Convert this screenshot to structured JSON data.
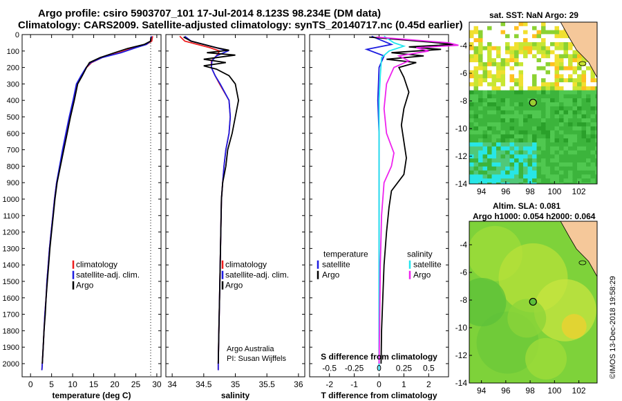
{
  "header": {
    "line1": "Argo profile: csiro 5903707_101 17-Jul-2014 8.123S 98.234E (DM data)",
    "line2": "Climatology: CARS2009. Satellite-adjusted climatology: synTS_20140717.nc (0.45d earlier)"
  },
  "colors": {
    "climatology": "#ee1c1c",
    "satellite": "#1c1ce0",
    "argo": "#000000",
    "sat_salinity": "#22e6ee",
    "argo_salinity": "#ee22ee"
  },
  "yaxis": {
    "ticks": [
      "0",
      "100",
      "200",
      "300",
      "400",
      "500",
      "600",
      "700",
      "800",
      "900",
      "1000",
      "1100",
      "1200",
      "1300",
      "1400",
      "1500",
      "1600",
      "1700",
      "1800",
      "1900",
      "2000"
    ]
  },
  "chart_data": [
    {
      "type": "line",
      "panel": "temperature",
      "xlabel": "temperature (deg C)",
      "xlim": [
        -2,
        31
      ],
      "ylim": [
        2080,
        0
      ],
      "y_axis": "pressure (dbar)",
      "x_ticks": [
        "0",
        "5",
        "10",
        "15",
        "20",
        "25",
        "30"
      ],
      "legend": [
        "climatology",
        "satellite-adj. clim.",
        "Argo"
      ],
      "series": [
        {
          "name": "climatology",
          "color": "#ee1c1c",
          "points": [
            [
              29.0,
              10
            ],
            [
              28.8,
              40
            ],
            [
              27.5,
              60
            ],
            [
              24.5,
              80
            ],
            [
              21.0,
              110
            ],
            [
              17.0,
              140
            ],
            [
              14.5,
              170
            ],
            [
              13.3,
              200
            ],
            [
              12.2,
              250
            ],
            [
              11.0,
              300
            ],
            [
              10.2,
              400
            ],
            [
              9.3,
              500
            ],
            [
              8.5,
              600
            ],
            [
              7.8,
              700
            ],
            [
              7.0,
              800
            ],
            [
              6.2,
              900
            ],
            [
              5.7,
              1000
            ],
            [
              5.3,
              1100
            ],
            [
              4.9,
              1200
            ],
            [
              4.5,
              1300
            ],
            [
              4.2,
              1400
            ],
            [
              3.9,
              1500
            ],
            [
              3.7,
              1600
            ],
            [
              3.4,
              1700
            ],
            [
              3.2,
              1800
            ],
            [
              3.0,
              1900
            ],
            [
              2.8,
              2000
            ],
            [
              2.7,
              2040
            ]
          ]
        },
        {
          "name": "satellite-adj. clim.",
          "color": "#1c1ce0",
          "points": [
            [
              28.7,
              10
            ],
            [
              28.5,
              40
            ],
            [
              27.5,
              60
            ],
            [
              25.0,
              80
            ],
            [
              21.5,
              110
            ],
            [
              17.0,
              140
            ],
            [
              14.3,
              170
            ],
            [
              13.2,
              200
            ],
            [
              12.0,
              250
            ],
            [
              10.9,
              300
            ],
            [
              10.1,
              400
            ],
            [
              9.2,
              500
            ],
            [
              8.4,
              600
            ],
            [
              7.6,
              700
            ],
            [
              6.9,
              800
            ],
            [
              6.2,
              900
            ],
            [
              5.7,
              1000
            ],
            [
              5.3,
              1100
            ],
            [
              4.9,
              1200
            ],
            [
              4.5,
              1300
            ],
            [
              4.2,
              1400
            ],
            [
              3.9,
              1500
            ],
            [
              3.7,
              1600
            ],
            [
              3.4,
              1700
            ],
            [
              3.2,
              1800
            ],
            [
              3.0,
              1900
            ],
            [
              2.8,
              2000
            ],
            [
              2.7,
              2040
            ]
          ]
        },
        {
          "name": "Argo",
          "color": "#000000",
          "points": [
            [
              28.6,
              15
            ],
            [
              28.5,
              40
            ],
            [
              27.0,
              60
            ],
            [
              23.0,
              85
            ],
            [
              20.0,
              110
            ],
            [
              16.5,
              140
            ],
            [
              14.0,
              170
            ],
            [
              13.4,
              195
            ],
            [
              12.3,
              250
            ],
            [
              11.2,
              300
            ],
            [
              10.4,
              400
            ],
            [
              9.5,
              500
            ],
            [
              8.7,
              600
            ],
            [
              7.9,
              700
            ],
            [
              7.1,
              800
            ],
            [
              6.3,
              900
            ],
            [
              5.8,
              1000
            ],
            [
              5.4,
              1100
            ],
            [
              5.0,
              1200
            ],
            [
              4.6,
              1300
            ],
            [
              4.3,
              1400
            ],
            [
              4.0,
              1500
            ],
            [
              3.7,
              1600
            ],
            [
              3.5,
              1700
            ],
            [
              3.2,
              1800
            ],
            [
              3.0,
              1900
            ],
            [
              2.8,
              2000
            ]
          ]
        }
      ]
    },
    {
      "type": "line",
      "panel": "salinity",
      "xlabel": "salinity",
      "xlim": [
        33.9,
        36.1
      ],
      "ylim": [
        2080,
        0
      ],
      "y_axis": "pressure (dbar)",
      "x_ticks": [
        "34",
        "34.5",
        "35",
        "35.5",
        "36"
      ],
      "legend": [
        "climatology",
        "satellite-adj. clim.",
        "Argo"
      ],
      "annotation": [
        "Argo Australia",
        "PI: Susan Wijffels"
      ],
      "series": [
        {
          "name": "climatology",
          "color": "#ee1c1c",
          "points": [
            [
              34.12,
              10
            ],
            [
              34.2,
              40
            ],
            [
              34.4,
              60
            ],
            [
              34.6,
              80
            ],
            [
              34.75,
              100
            ],
            [
              34.7,
              130
            ],
            [
              34.62,
              160
            ],
            [
              34.62,
              200
            ],
            [
              34.68,
              250
            ],
            [
              34.75,
              300
            ],
            [
              34.9,
              400
            ],
            [
              34.92,
              500
            ],
            [
              34.9,
              600
            ],
            [
              34.85,
              700
            ],
            [
              34.82,
              800
            ],
            [
              34.8,
              900
            ],
            [
              34.78,
              1000
            ],
            [
              34.77,
              1200
            ],
            [
              34.76,
              1400
            ],
            [
              34.75,
              1600
            ],
            [
              34.74,
              1800
            ],
            [
              34.73,
              2000
            ],
            [
              34.73,
              2040
            ]
          ]
        },
        {
          "name": "satellite-adj. clim.",
          "color": "#1c1ce0",
          "points": [
            [
              34.2,
              10
            ],
            [
              34.3,
              40
            ],
            [
              34.5,
              60
            ],
            [
              34.7,
              80
            ],
            [
              34.88,
              100
            ],
            [
              34.7,
              130
            ],
            [
              34.63,
              160
            ],
            [
              34.62,
              200
            ],
            [
              34.68,
              250
            ],
            [
              34.76,
              300
            ],
            [
              34.9,
              400
            ],
            [
              34.92,
              500
            ],
            [
              34.9,
              600
            ],
            [
              34.85,
              700
            ],
            [
              34.82,
              800
            ],
            [
              34.8,
              900
            ],
            [
              34.78,
              1000
            ],
            [
              34.77,
              1200
            ],
            [
              34.76,
              1400
            ],
            [
              34.75,
              1600
            ],
            [
              34.74,
              1800
            ],
            [
              34.73,
              2000
            ],
            [
              34.73,
              2040
            ]
          ]
        },
        {
          "name": "Argo",
          "color": "#000000",
          "points": [
            [
              34.18,
              15
            ],
            [
              34.3,
              40
            ],
            [
              34.5,
              60
            ],
            [
              34.7,
              80
            ],
            [
              34.9,
              95
            ],
            [
              34.55,
              110
            ],
            [
              35.0,
              125
            ],
            [
              34.5,
              150
            ],
            [
              34.85,
              170
            ],
            [
              34.5,
              190
            ],
            [
              34.7,
              210
            ],
            [
              34.9,
              250
            ],
            [
              35.0,
              300
            ],
            [
              35.05,
              400
            ],
            [
              35.0,
              500
            ],
            [
              34.95,
              600
            ],
            [
              34.88,
              700
            ],
            [
              34.85,
              800
            ],
            [
              34.8,
              900
            ],
            [
              34.78,
              1000
            ],
            [
              34.77,
              1200
            ],
            [
              34.76,
              1400
            ],
            [
              34.75,
              1600
            ],
            [
              34.74,
              1800
            ],
            [
              34.73,
              2000
            ]
          ]
        }
      ]
    },
    {
      "type": "line",
      "panel": "difference",
      "xlabel": "T difference from climatology",
      "xlabel_top": "S difference from climatology",
      "xlim": [
        -2.8,
        2.8
      ],
      "ylim": [
        2080,
        0
      ],
      "y_axis": "pressure (dbar)",
      "x_ticks": [
        "-2",
        "-1",
        "0",
        "1",
        "2"
      ],
      "x_ticks_top": [
        "-0.5",
        "-0.25",
        "0",
        "0.25",
        "0.5"
      ],
      "legend_left": {
        "title": "temperature",
        "items": [
          "satellite",
          "Argo"
        ]
      },
      "legend_right": {
        "title": "salinity",
        "items": [
          "satellite",
          "Argo"
        ]
      },
      "series": [
        {
          "name": "temperature satellite",
          "color": "#1c1ce0",
          "points": [
            [
              -0.3,
              10
            ],
            [
              0.5,
              60
            ],
            [
              -0.5,
              90
            ],
            [
              0.2,
              130
            ],
            [
              0.0,
              200
            ],
            [
              -0.05,
              400
            ],
            [
              0,
              600
            ],
            [
              0,
              1000
            ],
            [
              0,
              1500
            ],
            [
              0,
              2000
            ],
            [
              0,
              2040
            ]
          ]
        },
        {
          "name": "temperature Argo",
          "color": "#000000",
          "points": [
            [
              -0.4,
              15
            ],
            [
              2.0,
              45
            ],
            [
              3.0,
              60
            ],
            [
              1.2,
              75
            ],
            [
              2.5,
              90
            ],
            [
              0.5,
              110
            ],
            [
              1.8,
              130
            ],
            [
              0.3,
              150
            ],
            [
              1.5,
              170
            ],
            [
              0.8,
              200
            ],
            [
              1.0,
              260
            ],
            [
              1.2,
              350
            ],
            [
              1.0,
              450
            ],
            [
              0.9,
              550
            ],
            [
              1.0,
              650
            ],
            [
              1.1,
              750
            ],
            [
              1.0,
              850
            ],
            [
              0.5,
              950
            ],
            [
              0.4,
              1050
            ],
            [
              0.3,
              1200
            ],
            [
              0.2,
              1400
            ],
            [
              0.15,
              1600
            ],
            [
              0.1,
              1800
            ],
            [
              0.08,
              2000
            ]
          ]
        },
        {
          "name": "salinity satellite",
          "color": "#22e6ee",
          "points": [
            [
              0.2,
              10
            ],
            [
              0.6,
              50
            ],
            [
              1.0,
              70
            ],
            [
              0.4,
              100
            ],
            [
              0.1,
              140
            ],
            [
              0.05,
              250
            ],
            [
              0.0,
              400
            ],
            [
              0,
              700
            ],
            [
              0,
              1000
            ],
            [
              0,
              1500
            ],
            [
              0,
              2000
            ],
            [
              0,
              2040
            ]
          ]
        },
        {
          "name": "salinity Argo",
          "color": "#ee22ee",
          "points": [
            [
              -0.1,
              15
            ],
            [
              2.8,
              50
            ],
            [
              3.2,
              65
            ],
            [
              1.5,
              80
            ],
            [
              2.0,
              100
            ],
            [
              0.8,
              130
            ],
            [
              1.2,
              160
            ],
            [
              0.6,
              200
            ],
            [
              0.3,
              300
            ],
            [
              0.2,
              450
            ],
            [
              0.3,
              600
            ],
            [
              0.6,
              720
            ],
            [
              0.5,
              800
            ],
            [
              0.2,
              900
            ],
            [
              0.1,
              1100
            ],
            [
              0.05,
              1400
            ],
            [
              0.02,
              1800
            ],
            [
              0.0,
              2000
            ]
          ]
        }
      ]
    },
    {
      "type": "heatmap",
      "panel": "sst_map",
      "title": "sat. SST: NaN Argo: 29",
      "x_ticks": [
        "94",
        "96",
        "98",
        "100",
        "102"
      ],
      "y_ticks": [
        "-4",
        "-6",
        "-8",
        "-10",
        "-12",
        "-14"
      ],
      "xlim": [
        93,
        103.5
      ],
      "ylim": [
        -14,
        -2.3
      ],
      "float_position": [
        98.234,
        -8.123
      ]
    },
    {
      "type": "heatmap",
      "panel": "sla_map",
      "title_line1": "Altim. SLA: 0.081",
      "title_line2": "Argo h1000: 0.054 h2000: 0.064",
      "x_ticks": [
        "94",
        "96",
        "98",
        "100",
        "102"
      ],
      "y_ticks": [
        "-4",
        "-6",
        "-8",
        "-10",
        "-12",
        "-14"
      ],
      "xlim": [
        93,
        103.5
      ],
      "ylim": [
        -14,
        -2.3
      ],
      "float_position": [
        98.234,
        -8.123
      ]
    }
  ],
  "footer": {
    "stamp": "©IMOS 13-Dec-2018 19:58:29"
  }
}
